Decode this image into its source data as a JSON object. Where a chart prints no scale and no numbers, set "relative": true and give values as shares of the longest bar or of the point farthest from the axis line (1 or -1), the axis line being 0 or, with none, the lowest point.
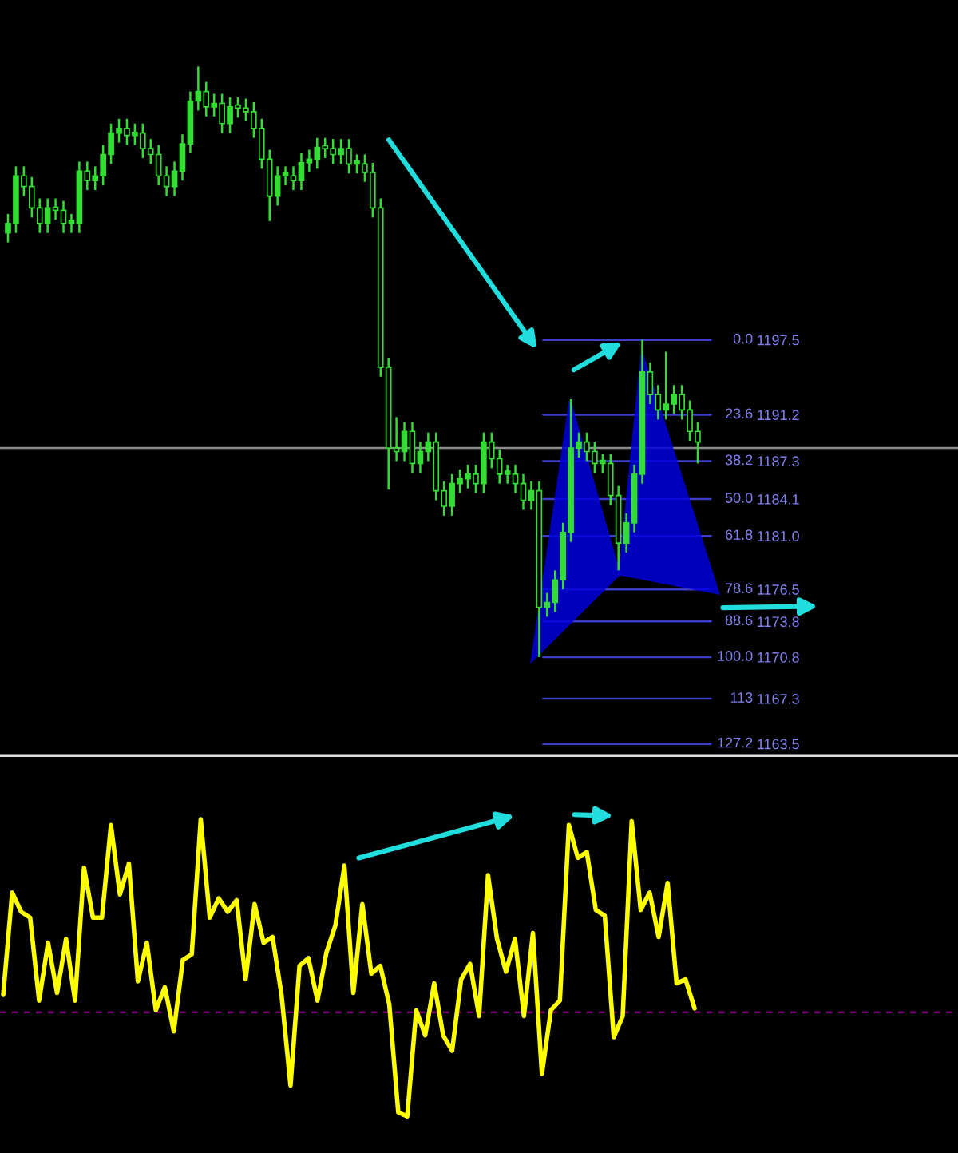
{
  "chart_data": [
    {
      "type": "candlestick",
      "color": "#33dd33",
      "tick_labels": "y",
      "ylim": [
        1162.4,
        1226.1
      ],
      "annotations": [
        "0.0",
        "23.6",
        "38.2",
        "50.0",
        "61.8",
        "78.6",
        "88.6",
        "100.0",
        "113",
        "127.2"
      ],
      "yticks": [
        1197.5,
        1191.2,
        1187.3,
        1184.1,
        {
          "value": 1181.0,
          "label": "1181.0"
        },
        1176.5,
        1173.8,
        1170.8,
        1167.3,
        1163.5
      ],
      "categories": [
        null,
        null,
        null,
        null,
        null,
        null,
        null,
        null,
        null,
        null,
        null,
        null,
        null,
        null,
        null,
        null,
        null,
        null,
        null,
        null,
        null,
        null,
        null,
        null,
        null,
        null,
        null,
        null,
        null,
        null,
        null,
        null,
        null,
        null,
        null,
        null,
        null,
        null,
        null,
        null,
        null,
        null,
        null,
        null,
        null,
        null,
        null,
        null,
        null,
        null,
        null,
        null,
        null,
        null,
        null,
        null,
        null,
        null,
        null,
        null,
        null,
        null,
        null,
        null,
        null,
        null,
        null,
        null,
        null,
        null,
        null,
        null,
        null,
        null,
        null,
        null,
        null,
        null,
        null,
        null,
        null,
        null,
        null,
        null,
        null,
        null,
        null,
        null
      ],
      "ohlc": [
        [
          1206.5,
          1208.1,
          1205.7,
          1207.3
        ],
        [
          1207.3,
          1212.1,
          1206.5,
          1211.3
        ],
        [
          1211.3,
          1212.1,
          1209.6,
          1210.4
        ],
        [
          1210.4,
          1211.2,
          1207.8,
          1208.6
        ],
        [
          1208.6,
          1209.4,
          1206.5,
          1207.3
        ],
        [
          1207.3,
          1209.4,
          1206.5,
          1208.6
        ],
        [
          1208.6,
          1209.4,
          1207.6,
          1208.4
        ],
        [
          1208.4,
          1209.2,
          1206.5,
          1207.3
        ],
        [
          1207.3,
          1208.1,
          1206.5,
          1207.3
        ],
        [
          1207.3,
          1212.5,
          1206.5,
          1211.7
        ],
        [
          1211.7,
          1212.5,
          1210.1,
          1210.9
        ],
        [
          1210.9,
          1212.1,
          1210.1,
          1211.3
        ],
        [
          1211.3,
          1213.9,
          1210.5,
          1213.1
        ],
        [
          1213.1,
          1215.7,
          1212.3,
          1214.9
        ],
        [
          1214.9,
          1216.1,
          1214.1,
          1215.3
        ],
        [
          1215.3,
          1216.1,
          1213.9,
          1214.7
        ],
        [
          1214.7,
          1215.7,
          1213.9,
          1214.9
        ],
        [
          1214.9,
          1215.7,
          1212.8,
          1213.6
        ],
        [
          1213.6,
          1214.4,
          1212.3,
          1213.1
        ],
        [
          1213.1,
          1213.9,
          1210.5,
          1211.3
        ],
        [
          1211.3,
          1212.1,
          1209.6,
          1210.4
        ],
        [
          1210.4,
          1212.5,
          1209.6,
          1211.7
        ],
        [
          1211.7,
          1214.8,
          1210.9,
          1214.0
        ],
        [
          1214.0,
          1218.4,
          1213.2,
          1217.6
        ],
        [
          1217.6,
          1220.5,
          1216.8,
          1218.4
        ],
        [
          1218.4,
          1219.2,
          1216.3,
          1217.1
        ],
        [
          1217.1,
          1218.2,
          1216.3,
          1217.4
        ],
        [
          1217.4,
          1218.2,
          1214.9,
          1215.7
        ],
        [
          1215.7,
          1217.9,
          1214.9,
          1217.1
        ],
        [
          1217.1,
          1217.9,
          1216.2,
          1217.0
        ],
        [
          1217.0,
          1217.8,
          1215.9,
          1216.7
        ],
        [
          1216.7,
          1217.5,
          1214.5,
          1215.3
        ],
        [
          1215.3,
          1216.1,
          1211.9,
          1212.7
        ],
        [
          1212.7,
          1213.5,
          1207.5,
          1209.6
        ],
        [
          1209.6,
          1212.1,
          1208.8,
          1211.3
        ],
        [
          1211.3,
          1212.1,
          1210.5,
          1211.3
        ],
        [
          1211.3,
          1212.1,
          1210.1,
          1210.9
        ],
        [
          1210.9,
          1213.2,
          1210.1,
          1212.4
        ],
        [
          1212.4,
          1213.5,
          1211.6,
          1212.7
        ],
        [
          1212.7,
          1214.5,
          1211.9,
          1213.7
        ],
        [
          1213.7,
          1214.5,
          1212.8,
          1213.6
        ],
        [
          1213.6,
          1214.4,
          1212.3,
          1213.1
        ],
        [
          1213.1,
          1214.4,
          1212.3,
          1213.6
        ],
        [
          1213.6,
          1214.4,
          1211.5,
          1212.3
        ],
        [
          1212.3,
          1213.1,
          1211.5,
          1212.3
        ],
        [
          1212.3,
          1213.1,
          1210.8,
          1211.6
        ],
        [
          1211.6,
          1212.4,
          1207.8,
          1208.6
        ],
        [
          1208.6,
          1209.4,
          1194.4,
          1195.2
        ],
        [
          1195.2,
          1196.0,
          1184.9,
          1188.4
        ],
        [
          1188.4,
          1191.0,
          1187.3,
          1188.1
        ],
        [
          1188.1,
          1190.6,
          1187.3,
          1189.8
        ],
        [
          1189.8,
          1190.6,
          1186.3,
          1187.1
        ],
        [
          1187.1,
          1188.9,
          1186.3,
          1188.1
        ],
        [
          1188.1,
          1189.7,
          1187.3,
          1188.9
        ],
        [
          1188.9,
          1189.7,
          1184.0,
          1184.8
        ],
        [
          1184.8,
          1185.6,
          1182.7,
          1183.5
        ],
        [
          1183.5,
          1186.2,
          1182.7,
          1185.4
        ],
        [
          1185.4,
          1186.6,
          1184.6,
          1185.8
        ],
        [
          1185.8,
          1187.0,
          1185.0,
          1186.2
        ],
        [
          1186.2,
          1187.0,
          1184.6,
          1185.4
        ],
        [
          1185.4,
          1189.7,
          1184.6,
          1188.9
        ],
        [
          1188.9,
          1189.7,
          1186.7,
          1187.5
        ],
        [
          1187.5,
          1188.3,
          1185.4,
          1186.2
        ],
        [
          1186.2,
          1187.0,
          1185.4,
          1186.2
        ],
        [
          1186.2,
          1187.0,
          1184.6,
          1185.4
        ],
        [
          1185.4,
          1186.2,
          1183.2,
          1184.0
        ],
        [
          1184.0,
          1185.6,
          1183.2,
          1184.8
        ],
        [
          1184.8,
          1185.6,
          1170.8,
          1175.0
        ],
        [
          1175.0,
          1176.2,
          1174.2,
          1175.4
        ],
        [
          1175.4,
          1178.1,
          1174.6,
          1177.3
        ],
        [
          1177.3,
          1182.1,
          1176.5,
          1181.3
        ],
        [
          1181.3,
          1192.5,
          1180.5,
          1188.4
        ],
        [
          1188.4,
          1189.7,
          1187.6,
          1188.9
        ],
        [
          1188.9,
          1189.7,
          1187.3,
          1188.1
        ],
        [
          1188.1,
          1188.9,
          1186.3,
          1187.1
        ],
        [
          1187.1,
          1187.9,
          1186.3,
          1187.1
        ],
        [
          1187.1,
          1187.9,
          1183.6,
          1184.4
        ],
        [
          1184.4,
          1185.2,
          1178.1,
          1180.4
        ],
        [
          1180.4,
          1182.9,
          1179.6,
          1182.1
        ],
        [
          1182.1,
          1187.0,
          1181.3,
          1186.2
        ],
        [
          1186.2,
          1197.5,
          1185.4,
          1194.8
        ],
        [
          1194.8,
          1195.6,
          1192.1,
          1192.9
        ],
        [
          1192.9,
          1193.7,
          1190.8,
          1191.6
        ],
        [
          1191.6,
          1196.5,
          1190.8,
          1192.1
        ],
        [
          1192.1,
          1193.7,
          1191.3,
          1192.9
        ],
        [
          1192.9,
          1193.7,
          1190.8,
          1191.6
        ],
        [
          1191.6,
          1192.4,
          1189.0,
          1189.8
        ],
        [
          1189.8,
          1190.6,
          1187.1,
          1188.9
        ]
      ],
      "ref_lines": [
        {
          "axis": "y",
          "value": 1188.4,
          "color": "#8c8c8c"
        },
        {
          "axis": "y",
          "value": 1197.5,
          "color": "#3d3dc8",
          "line_style": "solid"
        },
        {
          "axis": "y",
          "value": 1191.2,
          "color": "#3d3dc8",
          "line_style": "solid"
        },
        {
          "axis": "y",
          "value": 1187.3,
          "color": "#3d3dc8",
          "line_style": "solid"
        },
        {
          "axis": "y",
          "value": 1184.1,
          "color": "#3d3dc8",
          "line_style": "solid"
        },
        {
          "axis": "y",
          "value": 1181.0,
          "color": "#3d3dc8",
          "line_style": "solid"
        },
        {
          "axis": "y",
          "value": 1176.5,
          "color": "#3d3dc8",
          "line_style": "solid"
        },
        {
          "axis": "y",
          "value": 1173.8,
          "color": "#3d3dc8",
          "line_style": "solid"
        },
        {
          "axis": "y",
          "value": 1170.8,
          "color": "#3d3dc8",
          "line_style": "solid"
        },
        {
          "axis": "y",
          "value": 1167.3,
          "color": "#3d3dc8",
          "line_style": "solid"
        },
        {
          "axis": "y",
          "value": 1163.5,
          "color": "#3d3dc8",
          "line_style": "solid"
        }
      ]
    },
    {
      "type": "line",
      "relative": true,
      "categories": [
        null,
        null,
        null,
        null,
        null,
        null,
        null,
        null,
        null,
        null,
        null,
        null,
        null,
        null,
        null,
        null,
        null,
        null,
        null,
        null,
        null,
        null,
        null,
        null,
        null,
        null,
        null,
        null,
        null,
        null,
        null,
        null,
        null,
        null,
        null,
        null,
        null,
        null,
        null,
        null,
        null,
        null,
        null,
        null,
        null,
        null,
        null,
        null,
        null,
        null,
        null,
        null,
        null,
        null,
        null,
        null,
        null,
        null,
        null,
        null,
        null,
        null,
        null,
        null,
        null,
        null,
        null,
        null,
        null,
        null,
        null,
        null,
        null,
        null,
        null,
        null,
        null,
        null
      ],
      "series": [
        {
          "color": "#ffff00",
          "values": [
            0.09,
            0.62,
            0.52,
            0.49,
            0.06,
            0.36,
            0.1,
            0.38,
            0.06,
            0.75,
            0.49,
            0.49,
            0.97,
            0.61,
            0.77,
            0.16,
            0.36,
            0.01,
            0.13,
            -0.1,
            0.27,
            0.3,
            1.0,
            0.49,
            0.59,
            0.52,
            0.58,
            0.17,
            0.56,
            0.36,
            0.39,
            0.09,
            -0.38,
            0.24,
            0.28,
            0.06,
            0.31,
            0.45,
            0.76,
            0.1,
            0.56,
            0.2,
            0.24,
            0.04,
            -0.52,
            -0.54,
            0.01,
            -0.12,
            0.15,
            -0.12,
            -0.2,
            0.17,
            0.25,
            -0.02,
            0.71,
            0.38,
            0.21,
            0.38,
            -0.02,
            0.41,
            -0.32,
            0.01,
            0.06,
            0.97,
            0.8,
            0.83,
            0.53,
            0.5,
            -0.13,
            -0.02,
            0.99,
            0.53,
            0.62,
            0.39,
            0.67,
            0.15,
            0.17,
            0.02
          ]
        }
      ],
      "ref_lines": [
        {
          "axis": "y",
          "value": 0,
          "color": "#800080",
          "line_style": "dashed"
        }
      ]
    }
  ]
}
